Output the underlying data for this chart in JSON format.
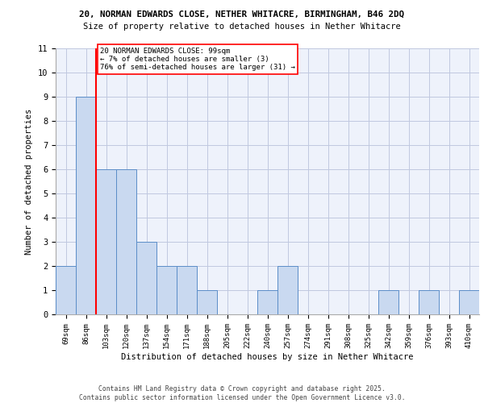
{
  "title_line1": "20, NORMAN EDWARDS CLOSE, NETHER WHITACRE, BIRMINGHAM, B46 2DQ",
  "title_line2": "Size of property relative to detached houses in Nether Whitacre",
  "xlabel": "Distribution of detached houses by size in Nether Whitacre",
  "ylabel": "Number of detached properties",
  "categories": [
    "69sqm",
    "86sqm",
    "103sqm",
    "120sqm",
    "137sqm",
    "154sqm",
    "171sqm",
    "188sqm",
    "205sqm",
    "222sqm",
    "240sqm",
    "257sqm",
    "274sqm",
    "291sqm",
    "308sqm",
    "325sqm",
    "342sqm",
    "359sqm",
    "376sqm",
    "393sqm",
    "410sqm"
  ],
  "values": [
    2,
    9,
    6,
    6,
    3,
    2,
    2,
    1,
    0,
    0,
    1,
    2,
    0,
    0,
    0,
    0,
    1,
    0,
    1,
    0,
    1
  ],
  "bar_color": "#c9d9f0",
  "bar_edge_color": "#5b8dc8",
  "red_line_x": 1.5,
  "annotation_box_text": "20 NORMAN EDWARDS CLOSE: 99sqm\n← 7% of detached houses are smaller (3)\n76% of semi-detached houses are larger (31) →",
  "ylim": [
    0,
    11
  ],
  "yticks": [
    0,
    1,
    2,
    3,
    4,
    5,
    6,
    7,
    8,
    9,
    10,
    11
  ],
  "grid_color": "#c0c8e0",
  "background_color": "#eef2fb",
  "footer_line1": "Contains HM Land Registry data © Crown copyright and database right 2025.",
  "footer_line2": "Contains public sector information licensed under the Open Government Licence v3.0."
}
